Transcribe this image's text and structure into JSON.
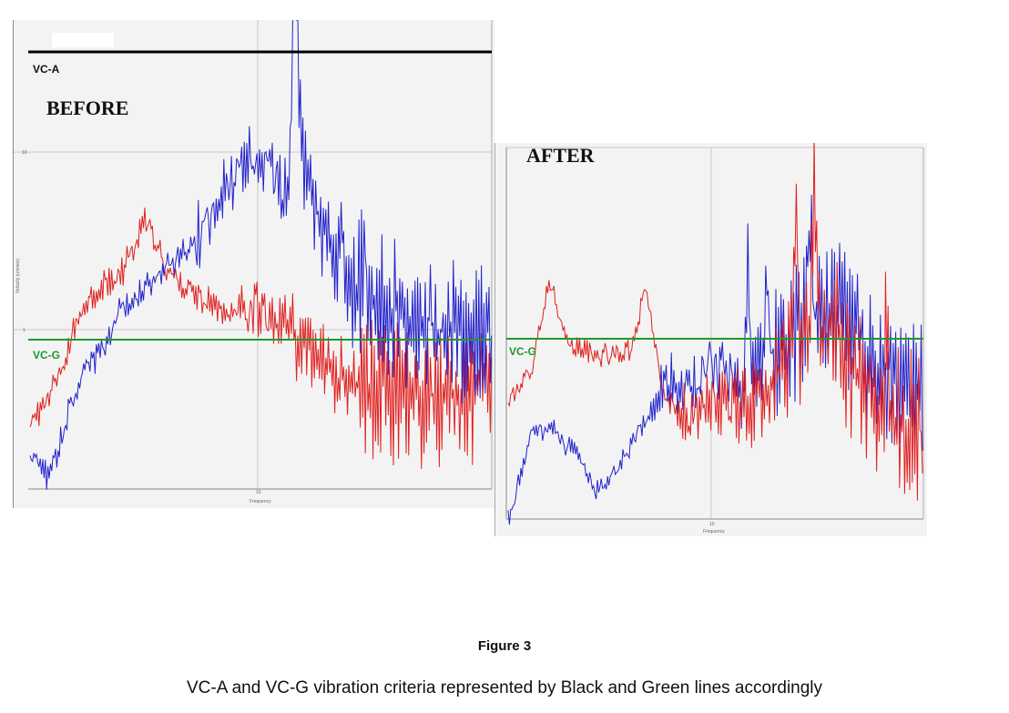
{
  "colors": {
    "before_series": "#2222cc",
    "after_series": "#e02020",
    "vc_a_line": "#000000",
    "vc_g_line": "#1e9a2a",
    "plot_bg": "#f3f3f3",
    "grid": "#c8c8c8"
  },
  "figure": {
    "label": "Figure 3",
    "caption": "VC-A and VC-G vibration criteria represented  by Black and Green lines accordingly"
  },
  "chart_data": [
    {
      "type": "line",
      "panel_label": "BEFORE",
      "xlabel": "Frequency",
      "ylabel": "Velocity (um/sec)",
      "x_scale": "log",
      "y_scale": "log",
      "grid": true,
      "y_tick_labels": [
        "1",
        "10"
      ],
      "x_tick_labels": [
        "10"
      ],
      "reference_lines": [
        {
          "name": "VC-A",
          "color": "#000000"
        },
        {
          "name": "VC-G",
          "color": "#1e9a2a"
        }
      ],
      "series": [
        {
          "color": "#2222cc"
        },
        {
          "color": "#e02020"
        }
      ]
    },
    {
      "type": "line",
      "panel_label": "AFTER",
      "xlabel": "Frequency",
      "x_scale": "log",
      "y_scale": "log",
      "grid": true,
      "x_tick_labels": [
        "10"
      ],
      "reference_lines": [
        {
          "name": "VC-G",
          "color": "#1e9a2a"
        }
      ],
      "series": [
        {
          "color": "#2222cc"
        },
        {
          "color": "#e02020"
        }
      ]
    }
  ]
}
